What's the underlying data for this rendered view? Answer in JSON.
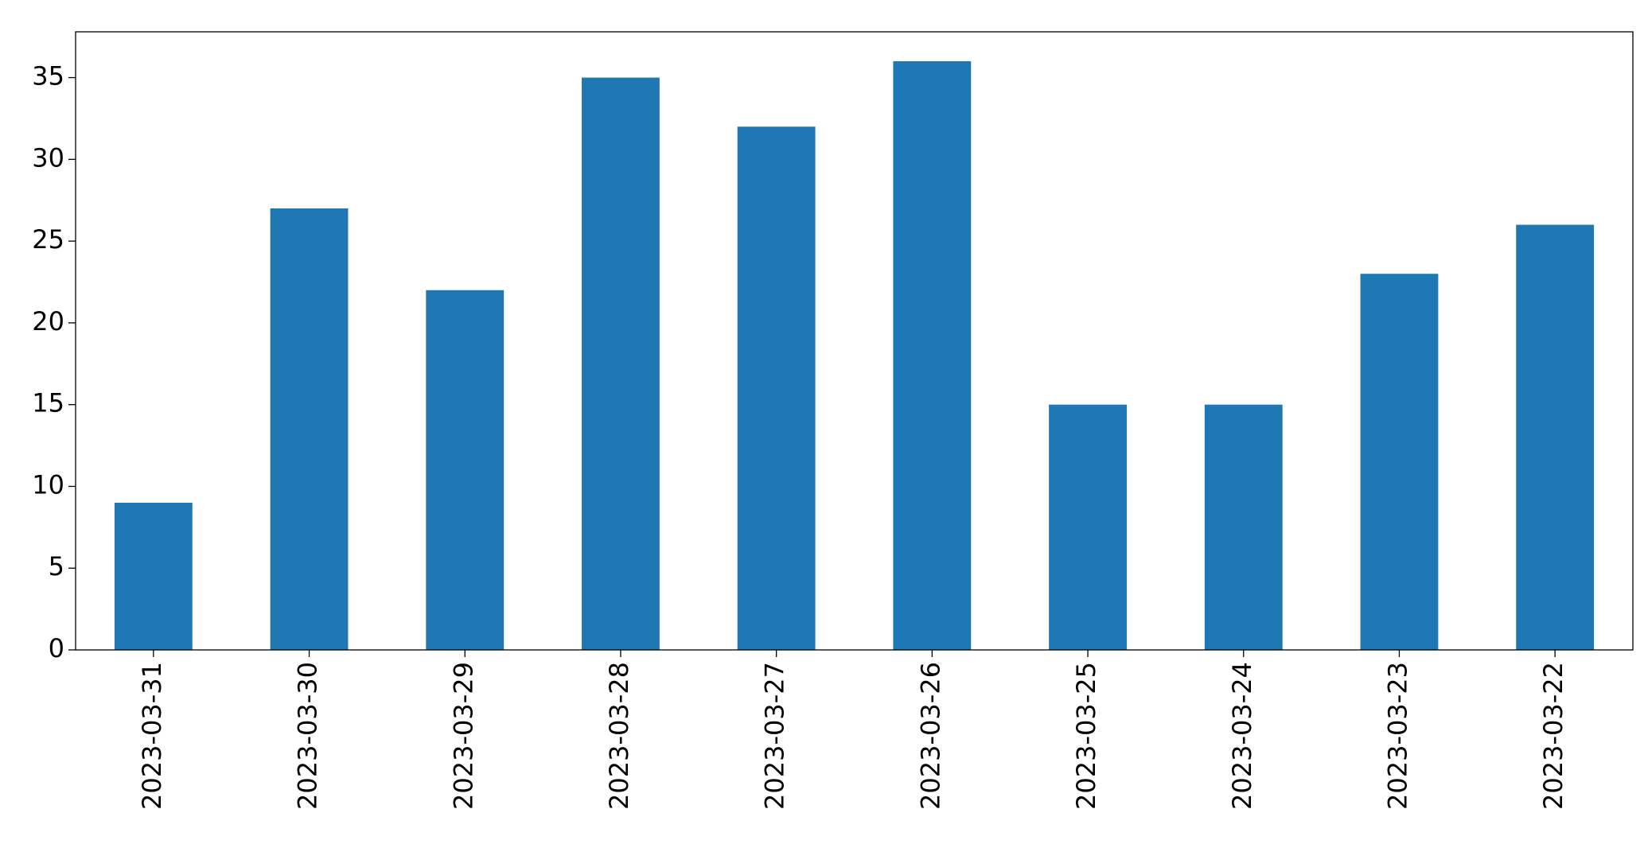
{
  "chart_data": {
    "type": "bar",
    "categories": [
      "2023-03-31",
      "2023-03-30",
      "2023-03-29",
      "2023-03-28",
      "2023-03-27",
      "2023-03-26",
      "2023-03-25",
      "2023-03-24",
      "2023-03-23",
      "2023-03-22"
    ],
    "values": [
      9,
      27,
      22,
      35,
      32,
      36,
      15,
      15,
      23,
      26
    ],
    "color": "#1f77b4",
    "ylim": [
      0,
      37.8
    ],
    "yticks": [
      0,
      5,
      10,
      15,
      20,
      25,
      30,
      35
    ],
    "grid": false
  }
}
